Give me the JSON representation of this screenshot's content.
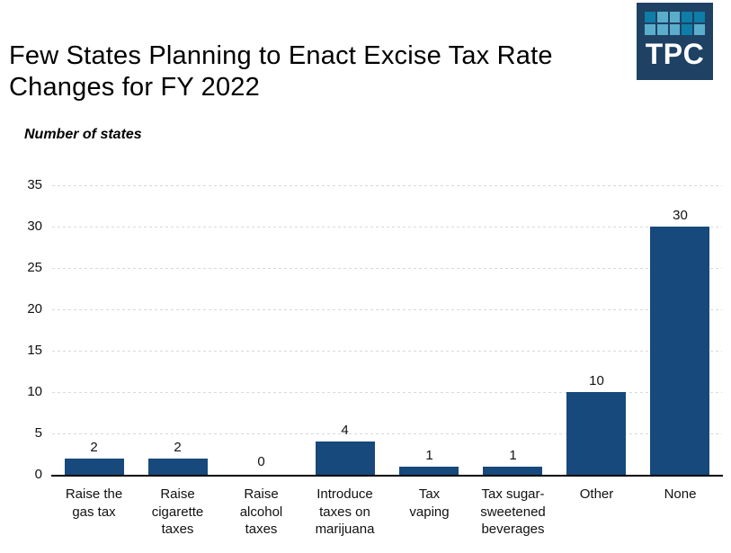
{
  "header": {
    "title": "Few States Planning to Enact Excise Tax Rate\nChanges for FY 2022"
  },
  "logo": {
    "text": "TPC",
    "background": "#1E4164",
    "tile_dark": "#0E7DA8",
    "tile_light": "#5BAECB",
    "tile_pattern": [
      [
        "dark",
        "light",
        "light",
        "dark",
        "dark"
      ],
      [
        "light",
        "light",
        "light",
        "dark",
        "light"
      ]
    ]
  },
  "chart_data": {
    "type": "bar",
    "title": "Few States Planning to Enact Excise Tax Rate Changes for FY 2022",
    "ylabel": "Number of states",
    "xlabel": "",
    "categories": [
      "Raise the gas tax",
      "Raise cigarette taxes",
      "Raise alcohol taxes",
      "Introduce taxes on marijuana",
      "Tax vaping",
      "Tax sugar-sweetened beverages",
      "Other",
      "None"
    ],
    "category_lines": [
      [
        "Raise the",
        "gas tax"
      ],
      [
        "Raise",
        "cigarette",
        "taxes"
      ],
      [
        "Raise",
        "alcohol",
        "taxes"
      ],
      [
        "Introduce",
        "taxes on",
        "marijuana"
      ],
      [
        "Tax",
        "vaping"
      ],
      [
        "Tax sugar-",
        "sweetened",
        "beverages"
      ],
      [
        "Other"
      ],
      [
        "None"
      ]
    ],
    "values": [
      2,
      2,
      0,
      4,
      1,
      1,
      10,
      30
    ],
    "data_labels": [
      "2",
      "2",
      "0",
      "4",
      "1",
      "1",
      "10",
      "30"
    ],
    "yticks": [
      0,
      5,
      10,
      15,
      20,
      25,
      30,
      35
    ],
    "ylim": [
      0,
      35
    ],
    "grid": "horizontal-dashed",
    "legend": "none",
    "bar_color": "#17497C",
    "gridline_color": "#D9D9D9",
    "axis_color": "#000000"
  }
}
